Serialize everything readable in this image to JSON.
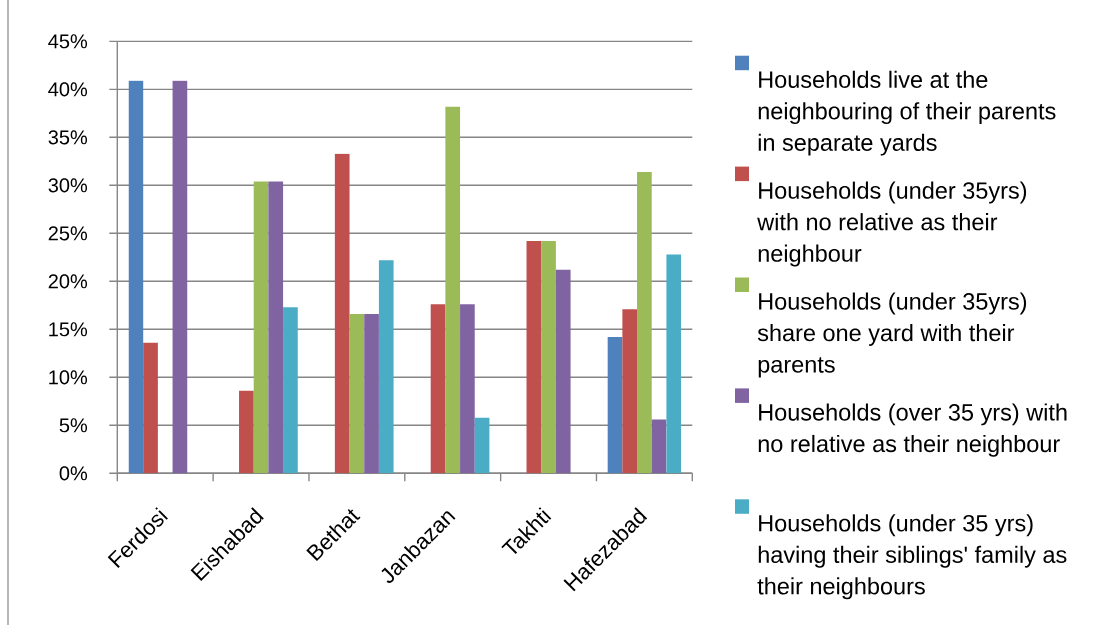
{
  "chart_data": {
    "type": "bar",
    "categories": [
      "Ferdosi",
      "Eishabad",
      "Bethat",
      "Janbazan",
      "Takhti",
      "Hafezabad"
    ],
    "series": [
      {
        "name": "Households live at the neighbouring of their parents in separate yards",
        "color": "#4f81bd",
        "values": [
          40.9,
          0,
          0,
          0,
          0,
          14.2
        ]
      },
      {
        "name": "Households (under 35yrs) with no relative as their neighbour",
        "color": "#c0504d",
        "values": [
          13.6,
          8.6,
          33.3,
          17.6,
          24.2,
          17.1
        ]
      },
      {
        "name": "Households (under 35yrs) share one yard with their parents",
        "color": "#9bbb59",
        "values": [
          0,
          30.4,
          16.6,
          38.2,
          24.2,
          31.4
        ]
      },
      {
        "name": "Households (over 35 yrs) with no relative as their neighbour",
        "color": "#8064a2",
        "values": [
          40.9,
          30.4,
          16.6,
          17.6,
          21.2,
          5.6
        ]
      },
      {
        "name": "Households (under 35 yrs) having their siblings' family as their neighbours",
        "color": "#4bacc6",
        "values": [
          0,
          17.3,
          22.2,
          5.8,
          0,
          22.8
        ]
      }
    ],
    "ylim": [
      0,
      45
    ],
    "yticks": [
      {
        "value": 0,
        "label": "0%"
      },
      {
        "value": 5,
        "label": "5%"
      },
      {
        "value": 10,
        "label": "10%"
      },
      {
        "value": 15,
        "label": "15%"
      },
      {
        "value": 20,
        "label": "20%"
      },
      {
        "value": 25,
        "label": "25%"
      },
      {
        "value": 30,
        "label": "30%"
      },
      {
        "value": 35,
        "label": "35%"
      },
      {
        "value": 40,
        "label": "40%"
      },
      {
        "value": 45,
        "label": "45%"
      }
    ],
    "grid": "y",
    "legend": "right"
  }
}
